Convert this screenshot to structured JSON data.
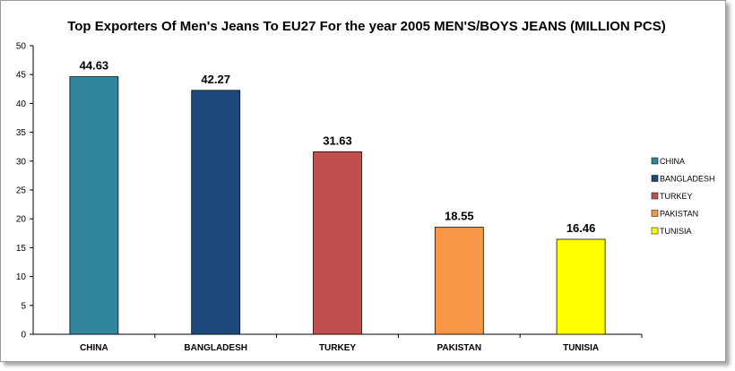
{
  "chart_data": {
    "type": "bar",
    "title": "Top Exporters Of Men's Jeans To EU27 For the year 2005 MEN'S/BOYS JEANS (MILLION PCS)",
    "xlabel": "",
    "ylabel": "",
    "categories": [
      "CHINA",
      "BANGLADESH",
      "TURKEY",
      "PAKISTAN",
      "TUNISIA"
    ],
    "values": [
      44.63,
      42.27,
      31.63,
      18.55,
      16.46
    ],
    "data_labels": [
      "44.63",
      "42.27",
      "31.63",
      "18.55",
      "16.46"
    ],
    "colors": [
      "#31859c",
      "#1f497d",
      "#c0504d",
      "#f79646",
      "#ffff00"
    ],
    "ylim": [
      0,
      50
    ],
    "yticks": [
      0,
      5,
      10,
      15,
      20,
      25,
      30,
      35,
      40,
      45,
      50
    ],
    "grid": false,
    "legend": {
      "placement": "right",
      "entries": [
        "CHINA",
        "BANGLADESH",
        "TURKEY",
        "PAKISTAN",
        "TUNISIA"
      ]
    }
  }
}
